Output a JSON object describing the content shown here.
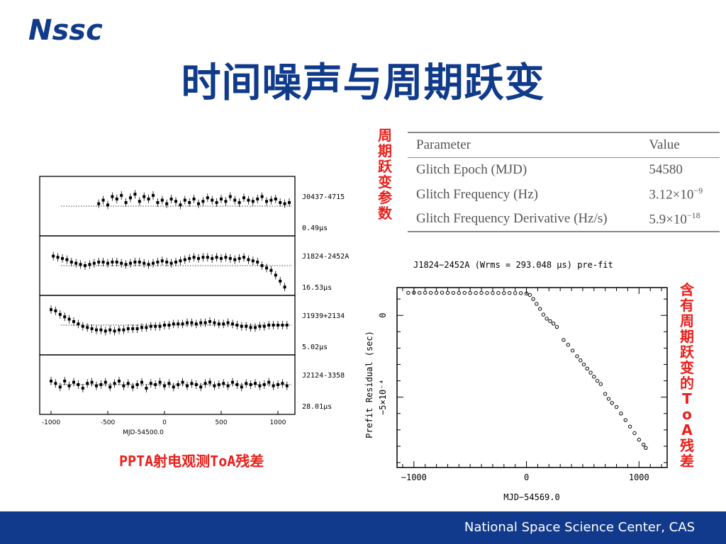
{
  "logo_text": "Nssc",
  "title": "时间噪声与周期跃变",
  "table_side_label": "周期跃变参数",
  "table": {
    "headers": [
      "Parameter",
      "Value"
    ],
    "rows": [
      {
        "param": "Glitch Epoch (MJD)",
        "value": "54580",
        "mantissa": "",
        "exponent": ""
      },
      {
        "param": "Glitch Frequency (Hz)",
        "value": "",
        "mantissa": "3.12×10",
        "exponent": "−9"
      },
      {
        "param": "Glitch Frequency Derivative (Hz/s)",
        "value": "",
        "mantissa": "5.9×10",
        "exponent": "−18"
      }
    ]
  },
  "left_caption": "PPTA射电观测ToA残差",
  "right_side_label": "含有周期跃变的ToA残差",
  "footer": "National Space Science Center, CAS",
  "chart_data": [
    {
      "type": "scatter",
      "xlabel": "MJD-54500.0",
      "x_ticks": [
        -1000,
        -500,
        0,
        500,
        1000
      ],
      "xlim": [
        -1100,
        1150
      ],
      "panels": [
        {
          "name": "J0437-4715",
          "scale": "0.49μs",
          "points": [
            [
              -580,
              0.2
            ],
            [
              -540,
              0.5
            ],
            [
              -500,
              0.1
            ],
            [
              -460,
              0.8
            ],
            [
              -420,
              0.6
            ],
            [
              -380,
              0.9
            ],
            [
              -340,
              0.3
            ],
            [
              -300,
              0.7
            ],
            [
              -260,
              1.0
            ],
            [
              -220,
              0.4
            ],
            [
              -180,
              0.8
            ],
            [
              -140,
              0.6
            ],
            [
              -100,
              0.9
            ],
            [
              -60,
              0.3
            ],
            [
              -20,
              0.5
            ],
            [
              20,
              0.2
            ],
            [
              60,
              0.6
            ],
            [
              100,
              0.4
            ],
            [
              140,
              0.1
            ],
            [
              180,
              0.5
            ],
            [
              220,
              0.3
            ],
            [
              260,
              0.6
            ],
            [
              300,
              0.2
            ],
            [
              340,
              0.4
            ],
            [
              380,
              0.7
            ],
            [
              420,
              0.5
            ],
            [
              460,
              0.3
            ],
            [
              500,
              0.6
            ],
            [
              540,
              0.4
            ],
            [
              580,
              0.8
            ],
            [
              620,
              0.5
            ],
            [
              660,
              0.3
            ],
            [
              700,
              0.7
            ],
            [
              740,
              0.5
            ],
            [
              780,
              0.4
            ],
            [
              820,
              0.6
            ],
            [
              860,
              0.8
            ],
            [
              900,
              0.4
            ],
            [
              940,
              0.5
            ],
            [
              980,
              0.6
            ],
            [
              1020,
              0.3
            ],
            [
              1060,
              0.2
            ],
            [
              1100,
              0.3
            ]
          ]
        },
        {
          "name": "J1824-2452A",
          "scale": "16.53μs",
          "points": [
            [
              -980,
              0.8
            ],
            [
              -940,
              0.7
            ],
            [
              -900,
              0.6
            ],
            [
              -860,
              0.5
            ],
            [
              -820,
              0.3
            ],
            [
              -780,
              0.2
            ],
            [
              -740,
              0.1
            ],
            [
              -700,
              0.0
            ],
            [
              -660,
              0.1
            ],
            [
              -620,
              0.2
            ],
            [
              -580,
              0.3
            ],
            [
              -540,
              0.3
            ],
            [
              -500,
              0.2
            ],
            [
              -460,
              0.3
            ],
            [
              -420,
              0.3
            ],
            [
              -380,
              0.2
            ],
            [
              -340,
              0.1
            ],
            [
              -300,
              0.2
            ],
            [
              -260,
              0.3
            ],
            [
              -220,
              0.3
            ],
            [
              -180,
              0.2
            ],
            [
              -140,
              0.1
            ],
            [
              -100,
              0.2
            ],
            [
              -60,
              0.3
            ],
            [
              -20,
              0.4
            ],
            [
              20,
              0.3
            ],
            [
              60,
              0.2
            ],
            [
              100,
              0.3
            ],
            [
              140,
              0.4
            ],
            [
              180,
              0.5
            ],
            [
              220,
              0.6
            ],
            [
              260,
              0.7
            ],
            [
              300,
              0.6
            ],
            [
              340,
              0.7
            ],
            [
              380,
              0.7
            ],
            [
              420,
              0.6
            ],
            [
              460,
              0.7
            ],
            [
              500,
              0.6
            ],
            [
              540,
              0.7
            ],
            [
              580,
              0.6
            ],
            [
              620,
              0.5
            ],
            [
              660,
              0.6
            ],
            [
              700,
              0.7
            ],
            [
              740,
              0.5
            ],
            [
              780,
              0.4
            ],
            [
              820,
              0.3
            ],
            [
              860,
              0.0
            ],
            [
              900,
              -0.2
            ],
            [
              940,
              -0.4
            ],
            [
              980,
              -0.8
            ],
            [
              1020,
              -1.3
            ],
            [
              1060,
              -1.8
            ]
          ]
        },
        {
          "name": "J1939+2134",
          "scale": "5.02μs",
          "points": [
            [
              -1000,
              1.3
            ],
            [
              -960,
              1.2
            ],
            [
              -920,
              0.9
            ],
            [
              -880,
              0.7
            ],
            [
              -840,
              0.5
            ],
            [
              -800,
              0.3
            ],
            [
              -760,
              0.1
            ],
            [
              -720,
              -0.1
            ],
            [
              -680,
              -0.2
            ],
            [
              -640,
              -0.3
            ],
            [
              -600,
              -0.4
            ],
            [
              -560,
              -0.4
            ],
            [
              -520,
              -0.5
            ],
            [
              -480,
              -0.4
            ],
            [
              -440,
              -0.5
            ],
            [
              -400,
              -0.4
            ],
            [
              -360,
              -0.4
            ],
            [
              -320,
              -0.3
            ],
            [
              -280,
              -0.3
            ],
            [
              -240,
              -0.3
            ],
            [
              -200,
              -0.2
            ],
            [
              -160,
              -0.2
            ],
            [
              -120,
              -0.1
            ],
            [
              -80,
              -0.1
            ],
            [
              -40,
              -0.1
            ],
            [
              0,
              0.0
            ],
            [
              40,
              0.0
            ],
            [
              80,
              0.1
            ],
            [
              120,
              0.1
            ],
            [
              160,
              0.1
            ],
            [
              200,
              0.2
            ],
            [
              240,
              0.2
            ],
            [
              280,
              0.1
            ],
            [
              320,
              0.2
            ],
            [
              360,
              0.2
            ],
            [
              400,
              0.3
            ],
            [
              440,
              0.2
            ],
            [
              480,
              0.1
            ],
            [
              520,
              0.1
            ],
            [
              560,
              0.2
            ],
            [
              600,
              0.1
            ],
            [
              640,
              0.0
            ],
            [
              680,
              -0.1
            ],
            [
              720,
              -0.1
            ],
            [
              760,
              -0.2
            ],
            [
              800,
              -0.2
            ],
            [
              840,
              -0.1
            ],
            [
              880,
              -0.1
            ],
            [
              920,
              0.0
            ],
            [
              960,
              0.0
            ],
            [
              1000,
              0.0
            ],
            [
              1040,
              0.0
            ],
            [
              1080,
              0.0
            ]
          ]
        },
        {
          "name": "J2124-3358",
          "scale": "28.01μs",
          "points": [
            [
              -1000,
              0.3
            ],
            [
              -960,
              0.1
            ],
            [
              -920,
              -0.2
            ],
            [
              -880,
              0.3
            ],
            [
              -840,
              -0.1
            ],
            [
              -800,
              0.2
            ],
            [
              -760,
              0.0
            ],
            [
              -720,
              -0.3
            ],
            [
              -680,
              0.1
            ],
            [
              -640,
              0.2
            ],
            [
              -600,
              -0.1
            ],
            [
              -560,
              0.0
            ],
            [
              -520,
              0.2
            ],
            [
              -480,
              -0.2
            ],
            [
              -440,
              0.1
            ],
            [
              -400,
              0.3
            ],
            [
              -360,
              -0.1
            ],
            [
              -320,
              0.1
            ],
            [
              -280,
              -0.2
            ],
            [
              -240,
              0.0
            ],
            [
              -200,
              0.2
            ],
            [
              -160,
              -0.3
            ],
            [
              -120,
              0.1
            ],
            [
              -80,
              0.0
            ],
            [
              -40,
              0.2
            ],
            [
              0,
              -0.1
            ],
            [
              40,
              0.1
            ],
            [
              80,
              -0.2
            ],
            [
              120,
              0.0
            ],
            [
              160,
              0.2
            ],
            [
              200,
              -0.1
            ],
            [
              240,
              0.1
            ],
            [
              280,
              0.0
            ],
            [
              320,
              -0.2
            ],
            [
              360,
              0.1
            ],
            [
              400,
              0.2
            ],
            [
              440,
              -0.1
            ],
            [
              480,
              0.0
            ],
            [
              520,
              0.1
            ],
            [
              560,
              -0.1
            ],
            [
              600,
              0.2
            ],
            [
              640,
              0.0
            ],
            [
              680,
              -0.2
            ],
            [
              720,
              0.1
            ],
            [
              760,
              0.0
            ],
            [
              800,
              0.1
            ],
            [
              840,
              -0.1
            ],
            [
              880,
              0.0
            ],
            [
              920,
              0.2
            ],
            [
              960,
              -0.1
            ],
            [
              1000,
              0.0
            ],
            [
              1040,
              0.1
            ],
            [
              1080,
              -0.1
            ]
          ]
        }
      ]
    },
    {
      "type": "scatter",
      "title": "J1824−2452A (Wrms = 293.048 μs) pre-fit",
      "xlabel": "MJD−54569.0",
      "ylabel": "Prefit Residual (sec)",
      "xlim": [
        -1150,
        1250
      ],
      "ylim": [
        -0.00093,
        0.00017
      ],
      "x_ticks": [
        -1000,
        0,
        1000
      ],
      "x_tick_labels": [
        "−1000",
        "0",
        "1000"
      ],
      "y_ticks": [
        0,
        -0.0005
      ],
      "y_tick_labels": [
        "0",
        "−5×10⁻⁴"
      ],
      "points": [
        [
          -1050,
          0.000138
        ],
        [
          -1000,
          0.000139
        ],
        [
          -950,
          0.000138
        ],
        [
          -900,
          0.000139
        ],
        [
          -850,
          0.000138
        ],
        [
          -800,
          0.000138
        ],
        [
          -750,
          0.000139
        ],
        [
          -700,
          0.000138
        ],
        [
          -650,
          0.000138
        ],
        [
          -600,
          0.000137
        ],
        [
          -550,
          0.000138
        ],
        [
          -500,
          0.000137
        ],
        [
          -450,
          0.000137
        ],
        [
          -400,
          0.000138
        ],
        [
          -350,
          0.000137
        ],
        [
          -300,
          0.000137
        ],
        [
          -250,
          0.000137
        ],
        [
          -200,
          0.000136
        ],
        [
          -150,
          0.000137
        ],
        [
          -100,
          0.000136
        ],
        [
          -50,
          0.000136
        ],
        [
          0,
          0.000134
        ],
        [
          30,
          0.000125
        ],
        [
          60,
          0.0001
        ],
        [
          90,
          7e-05
        ],
        [
          120,
          4e-05
        ],
        [
          150,
          5e-06
        ],
        [
          180,
          -2e-05
        ],
        [
          210,
          -3.5e-05
        ],
        [
          240,
          -5e-05
        ],
        [
          270,
          -7e-05
        ],
        [
          330,
          -0.00015
        ],
        [
          370,
          -0.00018
        ],
        [
          410,
          -0.000215
        ],
        [
          450,
          -0.00025
        ],
        [
          480,
          -0.000275
        ],
        [
          510,
          -0.0003
        ],
        [
          540,
          -0.000325
        ],
        [
          570,
          -0.00035
        ],
        [
          600,
          -0.000375
        ],
        [
          630,
          -0.0004
        ],
        [
          660,
          -0.00042
        ],
        [
          700,
          -0.00048
        ],
        [
          730,
          -0.00051
        ],
        [
          760,
          -0.000535
        ],
        [
          800,
          -0.00056
        ],
        [
          840,
          -0.0006
        ],
        [
          880,
          -0.00064
        ],
        [
          920,
          -0.00068
        ],
        [
          960,
          -0.00072
        ],
        [
          1000,
          -0.00076
        ],
        [
          1040,
          -0.00079
        ],
        [
          1060,
          -0.00081
        ]
      ]
    }
  ]
}
